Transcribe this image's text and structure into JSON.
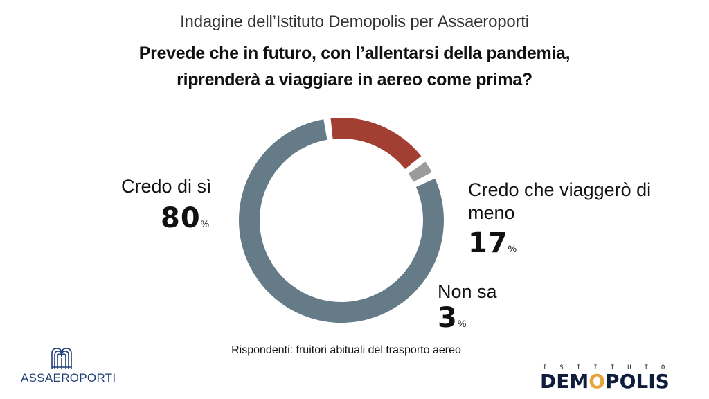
{
  "subtitle": "Indagine dell’Istituto Demopolis per Assaeroporti",
  "question": {
    "line1": "Prevede che in futuro, con l’allentarsi della pandemia,",
    "line2": "riprenderà a viaggiare in aereo come prima?"
  },
  "footnote": "Rispondenti: fruitori abituali del trasporto aereo",
  "logos": {
    "assaeroporti": "ASSAEROPORTI",
    "demopolis_small": "ISTITUTO",
    "demopolis_big": "DEMOPOLIS"
  },
  "colors": {
    "credo_si": "#657c88",
    "meno": "#a33e32",
    "non_sa": "#9b9b9b",
    "assaeroporti_blue": "#1f3f77",
    "demopolis_navy": "#0f1d3d",
    "demopolis_accent": "#e8a33a"
  },
  "chart_data": {
    "type": "pie",
    "title": "Prevede che in futuro, con l’allentarsi della pandemia, riprenderà a viaggiare in aereo come prima?",
    "slices": [
      {
        "label": "Credo di sì",
        "value": 80,
        "display": "80",
        "unit": "%"
      },
      {
        "label": "Credo che viaggerò di meno",
        "value": 17,
        "display": "17",
        "unit": "%"
      },
      {
        "label": "Non sa",
        "value": 3,
        "display": "3",
        "unit": "%"
      }
    ]
  }
}
